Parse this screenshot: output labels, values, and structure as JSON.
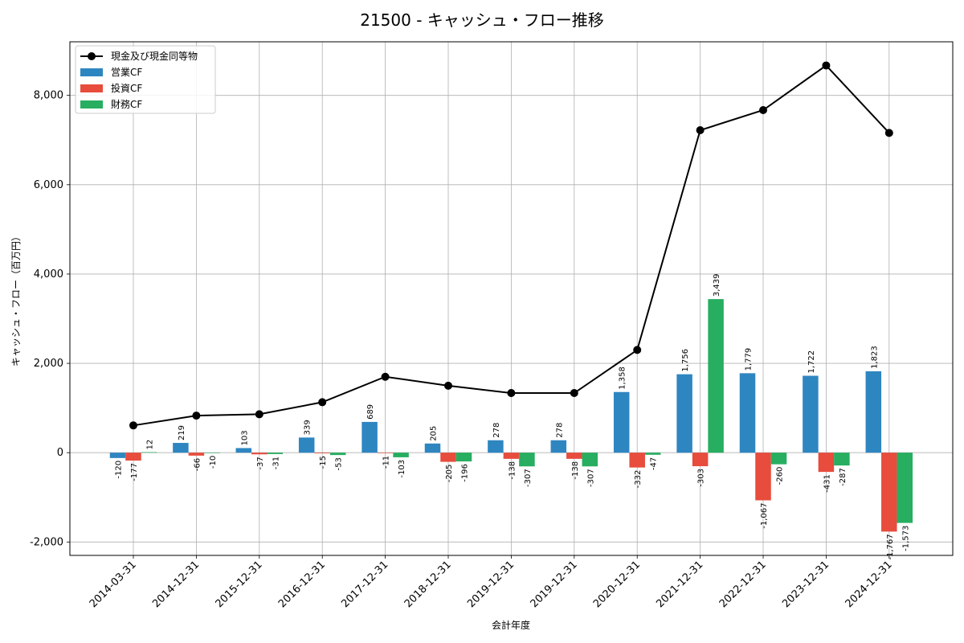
{
  "chart_data": {
    "type": "bar",
    "title": "21500 - キャッシュ・フロー推移",
    "xlabel": "会計年度",
    "ylabel": "キャッシュ・フロー（百万円）",
    "ylim": [
      -2300,
      9200
    ],
    "yticks": [
      -2000,
      0,
      2000,
      4000,
      6000,
      8000
    ],
    "ytick_labels": [
      "-2,000",
      "0",
      "2,000",
      "4,000",
      "6,000",
      "8,000"
    ],
    "grid": true,
    "legend_position": "top-left",
    "categories": [
      "2014-03-31",
      "2014-12-31",
      "2015-12-31",
      "2016-12-31",
      "2017-12-31",
      "2018-12-31",
      "2019-12-31",
      "2019-12-31",
      "2020-12-31",
      "2021-12-31",
      "2022-12-31",
      "2023-12-31",
      "2024-12-31"
    ],
    "series": [
      {
        "name": "営業CF",
        "kind": "bar",
        "color": "#2e86c1",
        "values": [
          -120,
          219,
          103,
          339,
          689,
          205,
          278,
          278,
          1358,
          1756,
          1779,
          1722,
          1823
        ],
        "labels": [
          "-120",
          "219",
          "103",
          "339",
          "689",
          "205",
          "278",
          "278",
          "1,358",
          "1,756",
          "1,779",
          "1,722",
          "1,823"
        ]
      },
      {
        "name": "投資CF",
        "kind": "bar",
        "color": "#e74c3c",
        "values": [
          -177,
          -66,
          -37,
          -15,
          -11,
          -205,
          -138,
          -138,
          -332,
          -303,
          -1067,
          -431,
          -1767
        ],
        "labels": [
          "-177",
          "-66",
          "-37",
          "-15",
          "-11",
          "-205",
          "-138",
          "-138",
          "-332",
          "-303",
          "-1,067",
          "-431",
          "-1,767"
        ]
      },
      {
        "name": "財務CF",
        "kind": "bar",
        "color": "#27ae60",
        "values": [
          12,
          -10,
          -31,
          -53,
          -103,
          -196,
          -307,
          -307,
          -47,
          3439,
          -260,
          -287,
          -1573
        ],
        "labels": [
          "12",
          "-10",
          "-31",
          "-53",
          "-103",
          "-196",
          "-307",
          "-307",
          "-47",
          "3,439",
          "-260",
          "-287",
          "-1,573"
        ]
      },
      {
        "name": "現金及び現金同等物",
        "kind": "line",
        "color": "#000000",
        "values": [
          610,
          830,
          860,
          1130,
          1700,
          1500,
          1335,
          1335,
          2300,
          7220,
          7670,
          8670,
          7160
        ]
      }
    ]
  }
}
